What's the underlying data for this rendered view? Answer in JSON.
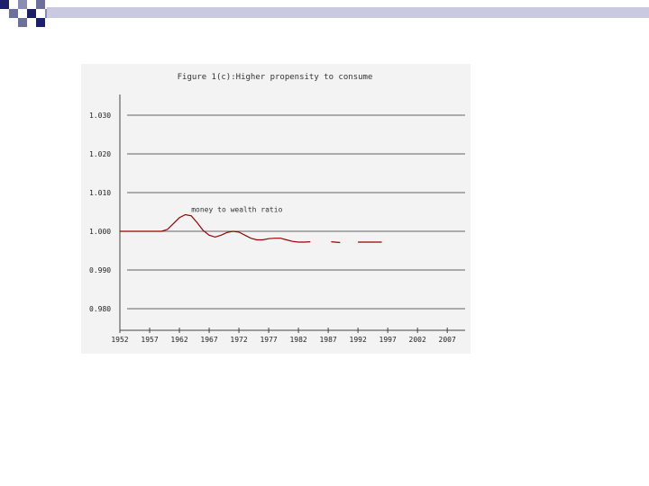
{
  "colors": {
    "navy": "#1c1f6b",
    "slate": "#6d6f9c",
    "panel": "#f3f3f3",
    "series": "#990000",
    "grid": "#333333"
  },
  "chart_data": {
    "type": "line",
    "title": "Figure 1(c):Higher propensity to consume",
    "xlabel": "",
    "ylabel": "",
    "xlim": [
      1952,
      2010
    ],
    "ylim": [
      0.975,
      1.035
    ],
    "x_ticks": [
      "1952",
      "1957",
      "1962",
      "1967",
      "1972",
      "1977",
      "1982",
      "1987",
      "1992",
      "1997",
      "2002",
      "2007"
    ],
    "y_ticks": [
      "1.030",
      "1.020",
      "1.010",
      "1.000",
      "0.990",
      "0.980"
    ],
    "grid": true,
    "annotations": [
      {
        "text": "money to wealth ratio",
        "x": 1964,
        "y": 1.0045
      }
    ],
    "series": [
      {
        "name": "",
        "segments": [
          [
            [
              1952,
              1.0
            ],
            [
              1955,
              1.0
            ],
            [
              1958,
              1.0
            ],
            [
              1959,
              1.0
            ],
            [
              1960,
              1.0005
            ],
            [
              1961,
              1.002
            ],
            [
              1962,
              1.0035
            ],
            [
              1963,
              1.0043
            ],
            [
              1964,
              1.004
            ],
            [
              1965,
              1.0022
            ],
            [
              1966,
              1.0002
            ],
            [
              1967,
              0.999
            ],
            [
              1968,
              0.9985
            ],
            [
              1969,
              0.999
            ],
            [
              1970,
              0.9997
            ],
            [
              1971,
              1.0
            ],
            [
              1972,
              0.9998
            ],
            [
              1973,
              0.999
            ],
            [
              1974,
              0.9982
            ],
            [
              1975,
              0.9978
            ],
            [
              1976,
              0.9978
            ],
            [
              1977,
              0.9981
            ],
            [
              1978,
              0.9982
            ],
            [
              1979,
              0.9982
            ],
            [
              1980,
              0.9978
            ],
            [
              1981,
              0.9974
            ],
            [
              1982,
              0.9972
            ],
            [
              1983,
              0.9972
            ],
            [
              1984,
              0.9973
            ]
          ],
          [
            [
              1987.5,
              0.9973
            ],
            [
              1989,
              0.9971
            ]
          ],
          [
            [
              1992,
              0.9972
            ],
            [
              1996,
              0.9972
            ]
          ]
        ]
      }
    ]
  }
}
